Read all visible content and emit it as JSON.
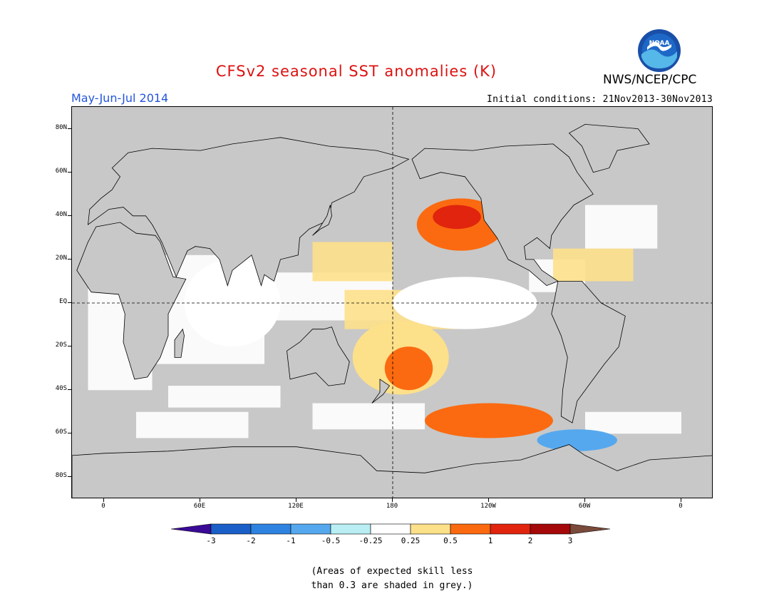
{
  "title": "CFSv2 seasonal SST anomalies (K)",
  "season": "May-Jun-Jul 2014",
  "agency": "NWS/NCEP/CPC",
  "logo_text": "NOAA",
  "initial_conditions": "Initial conditions: 21Nov2013-30Nov2013",
  "colors": {
    "title": "#dd1111",
    "season": "#2255dd",
    "skill_grey": "#c8c8c8",
    "land": "#c8c8c8"
  },
  "map": {
    "projection": "cylindrical equidistant",
    "lon_range": [
      -20,
      380
    ],
    "lat_range": [
      -90,
      90
    ],
    "equator_line": "dashed",
    "dateline_line": "dashed"
  },
  "lat_labels": [
    {
      "lat": 80,
      "label": "80N"
    },
    {
      "lat": 60,
      "label": "60N"
    },
    {
      "lat": 40,
      "label": "40N"
    },
    {
      "lat": 20,
      "label": "20N"
    },
    {
      "lat": 0,
      "label": "EQ"
    },
    {
      "lat": -20,
      "label": "20S"
    },
    {
      "lat": -40,
      "label": "40S"
    },
    {
      "lat": -60,
      "label": "60S"
    },
    {
      "lat": -80,
      "label": "80S"
    }
  ],
  "lon_labels": [
    {
      "lon": 0,
      "label": "0"
    },
    {
      "lon": 60,
      "label": "60E"
    },
    {
      "lon": 120,
      "label": "120E"
    },
    {
      "lon": 180,
      "label": "180"
    },
    {
      "lon": 240,
      "label": "120W"
    },
    {
      "lon": 300,
      "label": "60W"
    },
    {
      "lon": 360,
      "label": "0"
    }
  ],
  "colorbar": {
    "colors": [
      "#3a0a96",
      "#1a5ec8",
      "#2e82e0",
      "#55a8ee",
      "#b8eef4",
      "#ffffff",
      "#fde08a",
      "#fb6a10",
      "#e0240e",
      "#a40808",
      "#7a4a3a"
    ],
    "labels": [
      "-3",
      "-2",
      "-1",
      "-0.5",
      "-0.25",
      "0.25",
      "0.5",
      "1",
      "2",
      "3"
    ]
  },
  "anomaly_regions": [
    {
      "name": "north-pacific-warm",
      "lon": [
        195,
        250
      ],
      "lat": [
        24,
        48
      ],
      "level": "0.5"
    },
    {
      "name": "north-pacific-core",
      "lon": [
        205,
        235
      ],
      "lat": [
        34,
        45
      ],
      "level": "1"
    },
    {
      "name": "south-pacific-warm",
      "lon": [
        155,
        215
      ],
      "lat": [
        -42,
        -8
      ],
      "level": "0.25"
    },
    {
      "name": "south-pacific-core",
      "lon": [
        175,
        205
      ],
      "lat": [
        -40,
        -20
      ],
      "level": "0.5"
    },
    {
      "name": "southern-ocean-band",
      "lon": [
        200,
        280
      ],
      "lat": [
        -62,
        -46
      ],
      "level": "0.5"
    },
    {
      "name": "equatorial-pacific-white",
      "lon": [
        180,
        270
      ],
      "lat": [
        -12,
        12
      ],
      "level": "-0.25"
    },
    {
      "name": "indian-ocean-white",
      "lon": [
        50,
        110
      ],
      "lat": [
        -20,
        20
      ],
      "level": "-0.25"
    },
    {
      "name": "drake-passage-cool",
      "lon": [
        270,
        320
      ],
      "lat": [
        -68,
        -58
      ],
      "level": "-0.5"
    }
  ],
  "note_lines": [
    "(Areas of expected skill less",
    "than 0.3 are shaded in grey.)"
  ]
}
